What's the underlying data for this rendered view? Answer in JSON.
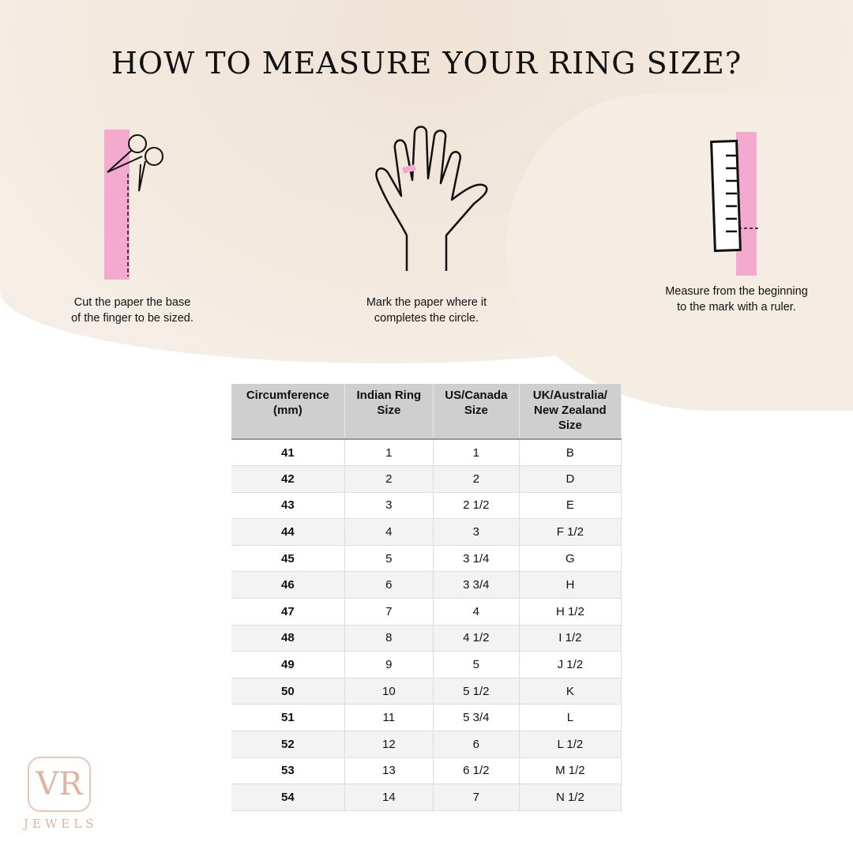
{
  "title": "HOW TO MEASURE YOUR RING SIZE?",
  "steps": [
    {
      "icon": "scissors-paper-icon",
      "line1": "Cut the paper the base",
      "line2": "of the finger to be sized."
    },
    {
      "icon": "hand-icon",
      "line1": "Mark the paper where it",
      "line2": "completes the circle."
    },
    {
      "icon": "ruler-icon",
      "line1": "Measure from the beginning",
      "line2": "to the mark with a ruler."
    }
  ],
  "table": {
    "headers": [
      [
        "Circumference",
        "(mm)"
      ],
      [
        "Indian Ring",
        "Size"
      ],
      [
        "US/Canada",
        "Size"
      ],
      [
        "UK/Australia/",
        "New Zealand",
        "Size"
      ]
    ],
    "rows": [
      [
        "41",
        "1",
        "1",
        "B"
      ],
      [
        "42",
        "2",
        "2",
        "D"
      ],
      [
        "43",
        "3",
        "2 1/2",
        "E"
      ],
      [
        "44",
        "4",
        "3",
        "F 1/2"
      ],
      [
        "45",
        "5",
        "3 1/4",
        "G"
      ],
      [
        "46",
        "6",
        "3 3/4",
        "H"
      ],
      [
        "47",
        "7",
        "4",
        "H 1/2"
      ],
      [
        "48",
        "8",
        "4 1/2",
        "I 1/2"
      ],
      [
        "49",
        "9",
        "5",
        "J 1/2"
      ],
      [
        "50",
        "10",
        "5 1/2",
        "K"
      ],
      [
        "51",
        "11",
        "5 3/4",
        "L"
      ],
      [
        "52",
        "12",
        "6",
        "L 1/2"
      ],
      [
        "53",
        "13",
        "6 1/2",
        "M 1/2"
      ],
      [
        "54",
        "14",
        "7",
        "N 1/2"
      ]
    ]
  },
  "logo": {
    "mark": "VR",
    "word": "JEWELS"
  },
  "colors": {
    "pink": "#f4a9cf",
    "cream": "#f3e9df",
    "header": "#cfcfcf"
  }
}
